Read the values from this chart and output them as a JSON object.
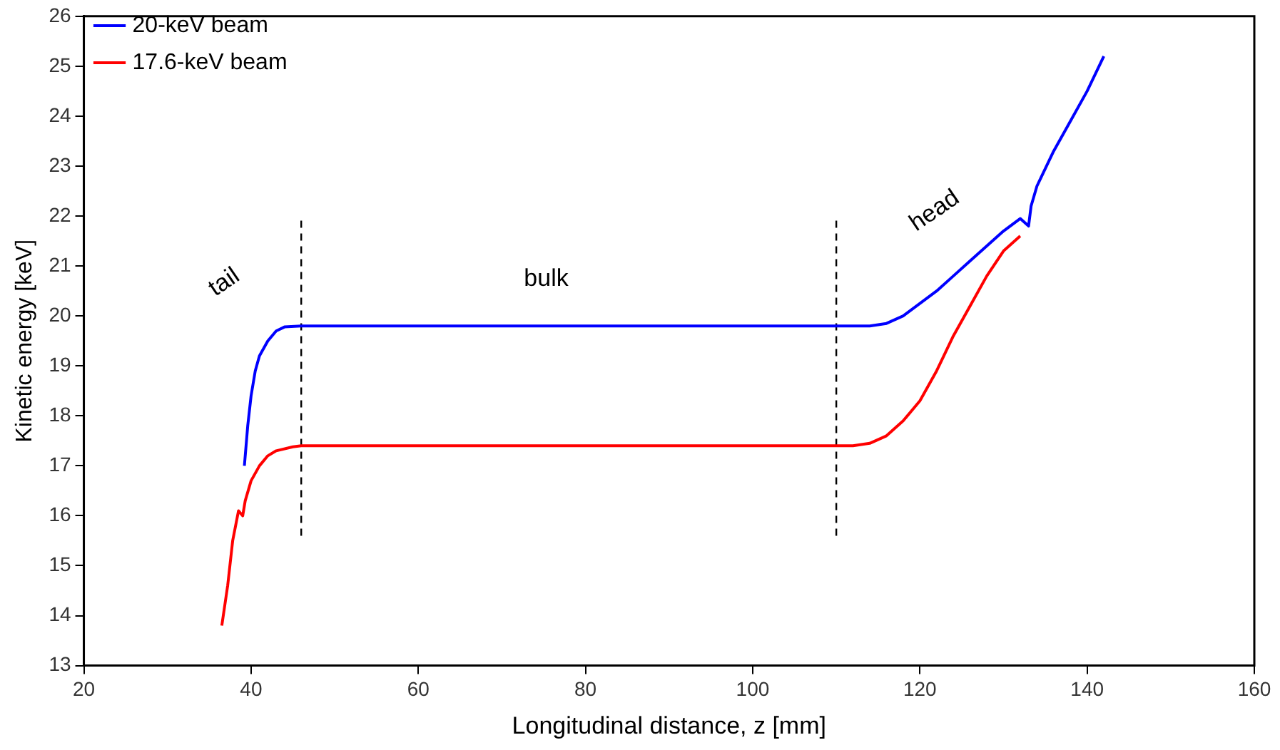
{
  "chart_data": {
    "type": "line",
    "xlabel": "Longitudinal distance, z [mm]",
    "ylabel": "Kinetic energy [keV]",
    "xlim": [
      20,
      160
    ],
    "xticks": [
      20,
      40,
      60,
      80,
      100,
      120,
      140,
      160
    ],
    "ylim": [
      13,
      26
    ],
    "yticks": [
      13,
      14,
      15,
      16,
      17,
      18,
      19,
      20,
      21,
      22,
      23,
      24,
      25,
      26
    ],
    "grid": false,
    "legend": "top left",
    "marker": "none",
    "line_style": "solid",
    "series": [
      {
        "name": "20-keV beam",
        "color": "#0000ff",
        "x": [
          39.2,
          39.6,
          40,
          40.5,
          41,
          42,
          43,
          44,
          46,
          60,
          80,
          100,
          110,
          114,
          116,
          118,
          120,
          122,
          124,
          126,
          128,
          130,
          132,
          133,
          133.3,
          134,
          136,
          138,
          140,
          142
        ],
        "values": [
          17.0,
          17.8,
          18.4,
          18.9,
          19.2,
          19.5,
          19.7,
          19.78,
          19.8,
          19.8,
          19.8,
          19.8,
          19.8,
          19.8,
          19.85,
          20.0,
          20.25,
          20.5,
          20.8,
          21.1,
          21.4,
          21.7,
          21.95,
          21.8,
          22.2,
          22.6,
          23.3,
          23.9,
          24.5,
          25.2
        ]
      },
      {
        "name": "17.6-keV beam",
        "color": "#ff0000",
        "x": [
          36.5,
          37.2,
          37.8,
          38.5,
          39,
          39.3,
          40,
          41,
          42,
          43,
          45,
          46,
          60,
          80,
          100,
          112,
          114,
          116,
          118,
          120,
          122,
          124,
          126,
          128,
          130,
          132
        ],
        "values": [
          13.8,
          14.6,
          15.5,
          16.1,
          16.0,
          16.3,
          16.7,
          17.0,
          17.2,
          17.3,
          17.38,
          17.4,
          17.4,
          17.4,
          17.4,
          17.4,
          17.45,
          17.6,
          17.9,
          18.3,
          18.9,
          19.6,
          20.2,
          20.8,
          21.3,
          21.6
        ]
      },
      {
        "color": "#000000",
        "line_style": "dashed",
        "x": [
          46,
          46
        ],
        "values": [
          15.6,
          22.0
        ]
      },
      {
        "color": "#000000",
        "line_style": "dashed",
        "x": [
          110,
          110
        ],
        "values": [
          15.6,
          22.0
        ]
      }
    ],
    "annotations": [
      "tail",
      "bulk",
      "head"
    ]
  }
}
